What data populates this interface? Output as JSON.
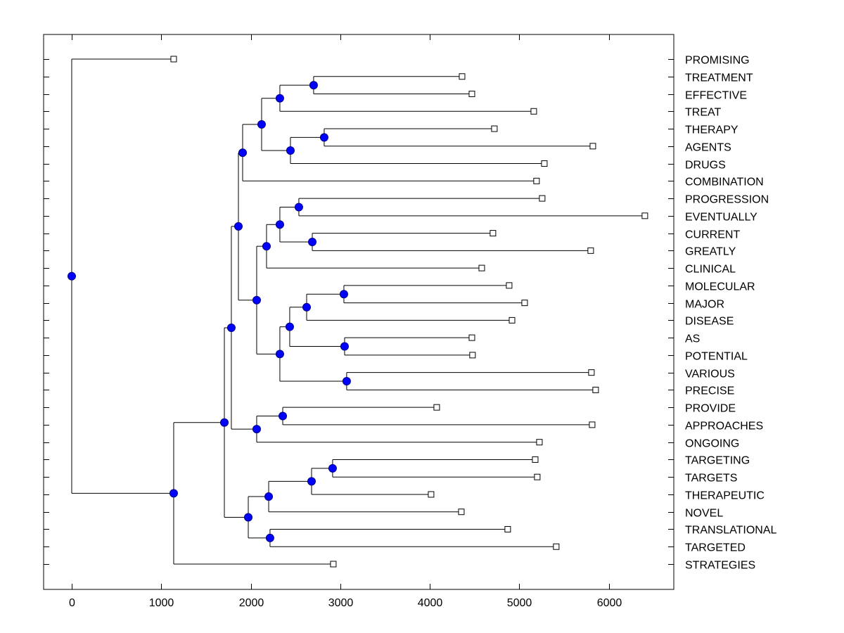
{
  "chart_data": {
    "type": "dendrogram",
    "title": "",
    "xlabel": "",
    "ylabel": "",
    "xlim": [
      -314,
      6725
    ],
    "xticks": [
      0,
      1000,
      2000,
      3000,
      4000,
      5000,
      6000
    ],
    "xtick_labels": [
      "0",
      "1000",
      "2000",
      "3000",
      "4000",
      "5000",
      "6000"
    ],
    "grid": false,
    "legend": "none",
    "colors": {
      "node_fill": "#0000ff",
      "node_stroke": "#000080",
      "leaf_fill": "#ffffff",
      "line": "#000000"
    },
    "leaves": [
      {
        "label": "PROMISING",
        "value": 1139
      },
      {
        "label": "TREATMENT",
        "value": 4360
      },
      {
        "label": "EFFECTIVE",
        "value": 4470
      },
      {
        "label": "TREAT",
        "value": 5161
      },
      {
        "label": "THERAPY",
        "value": 4721
      },
      {
        "label": "AGENTS",
        "value": 5821
      },
      {
        "label": "DRUGS",
        "value": 5279
      },
      {
        "label": "COMBINATION",
        "value": 5192
      },
      {
        "label": "PROGRESSION",
        "value": 5255
      },
      {
        "label": "EVENTUALLY",
        "value": 6402
      },
      {
        "label": "CURRENT",
        "value": 4705
      },
      {
        "label": "GREATLY",
        "value": 5797
      },
      {
        "label": "CLINICAL",
        "value": 4580
      },
      {
        "label": "MOLECULAR",
        "value": 4886
      },
      {
        "label": "MAJOR",
        "value": 5059
      },
      {
        "label": "DISEASE",
        "value": 4918
      },
      {
        "label": "AS",
        "value": 4470
      },
      {
        "label": "POTENTIAL",
        "value": 4477
      },
      {
        "label": "VARIOUS",
        "value": 5805
      },
      {
        "label": "PRECISE",
        "value": 5852
      },
      {
        "label": "PROVIDE",
        "value": 4077
      },
      {
        "label": "APPROACHES",
        "value": 5813
      },
      {
        "label": "ONGOING",
        "value": 5224
      },
      {
        "label": "TARGETING",
        "value": 5177
      },
      {
        "label": "TARGETS",
        "value": 5200
      },
      {
        "label": "THERAPEUTIC",
        "value": 4014
      },
      {
        "label": "NOVEL",
        "value": 4352
      },
      {
        "label": "TRANSLATIONAL",
        "value": 4870
      },
      {
        "label": "TARGETED",
        "value": 5412
      },
      {
        "label": "STRATEGIES",
        "value": 2922
      }
    ],
    "tree": {
      "value": 0,
      "children": [
        {
          "leaf": 0
        },
        {
          "value": 1139,
          "children": [
            {
              "value": 1705,
              "children": [
                {
                  "value": 1783,
                  "children": [
                    {
                      "value": 1862,
                      "children": [
                        {
                          "value": 1909,
                          "children": [
                            {
                              "value": 2121,
                              "children": [
                                {
                                  "value": 2325,
                                  "children": [
                                    {
                                      "value": 2702,
                                      "children": [
                                        {
                                          "leaf": 1
                                        },
                                        {
                                          "leaf": 2
                                        }
                                      ]
                                    },
                                    {
                                      "leaf": 3
                                    }
                                  ]
                                },
                                {
                                  "value": 2443,
                                  "children": [
                                    {
                                      "value": 2820,
                                      "children": [
                                        {
                                          "leaf": 4
                                        },
                                        {
                                          "leaf": 5
                                        }
                                      ]
                                    },
                                    {
                                      "leaf": 6
                                    }
                                  ]
                                }
                              ]
                            },
                            {
                              "leaf": 7
                            }
                          ]
                        },
                        {
                          "value": 2066,
                          "children": [
                            {
                              "value": 2176,
                              "children": [
                                {
                                  "value": 2325,
                                  "children": [
                                    {
                                      "value": 2537,
                                      "children": [
                                        {
                                          "leaf": 8
                                        },
                                        {
                                          "leaf": 9
                                        }
                                      ]
                                    },
                                    {
                                      "value": 2687,
                                      "children": [
                                        {
                                          "leaf": 10
                                        },
                                        {
                                          "leaf": 11
                                        }
                                      ]
                                    }
                                  ]
                                },
                                {
                                  "leaf": 12
                                }
                              ]
                            },
                            {
                              "value": 2325,
                              "children": [
                                {
                                  "value": 2435,
                                  "children": [
                                    {
                                      "value": 2624,
                                      "children": [
                                        {
                                          "value": 3040,
                                          "children": [
                                            {
                                              "leaf": 13
                                            },
                                            {
                                              "leaf": 14
                                            }
                                          ]
                                        },
                                        {
                                          "leaf": 15
                                        }
                                      ]
                                    },
                                    {
                                      "value": 3048,
                                      "children": [
                                        {
                                          "leaf": 16
                                        },
                                        {
                                          "leaf": 17
                                        }
                                      ]
                                    }
                                  ]
                                },
                                {
                                  "value": 3071,
                                  "children": [
                                    {
                                      "leaf": 18
                                    },
                                    {
                                      "leaf": 19
                                    }
                                  ]
                                }
                              ]
                            }
                          ]
                        }
                      ]
                    },
                    {
                      "value": 2066,
                      "children": [
                        {
                          "value": 2357,
                          "children": [
                            {
                              "leaf": 20
                            },
                            {
                              "leaf": 21
                            }
                          ]
                        },
                        {
                          "leaf": 22
                        }
                      ]
                    }
                  ]
                },
                {
                  "value": 1972,
                  "children": [
                    {
                      "value": 2200,
                      "children": [
                        {
                          "value": 2679,
                          "children": [
                            {
                              "value": 2914,
                              "children": [
                                {
                                  "leaf": 23
                                },
                                {
                                  "leaf": 24
                                }
                              ]
                            },
                            {
                              "leaf": 25
                            }
                          ]
                        },
                        {
                          "leaf": 26
                        }
                      ]
                    },
                    {
                      "value": 2215,
                      "children": [
                        {
                          "leaf": 27
                        },
                        {
                          "leaf": 28
                        }
                      ]
                    }
                  ]
                }
              ]
            },
            {
              "leaf": 29
            }
          ]
        }
      ]
    }
  }
}
